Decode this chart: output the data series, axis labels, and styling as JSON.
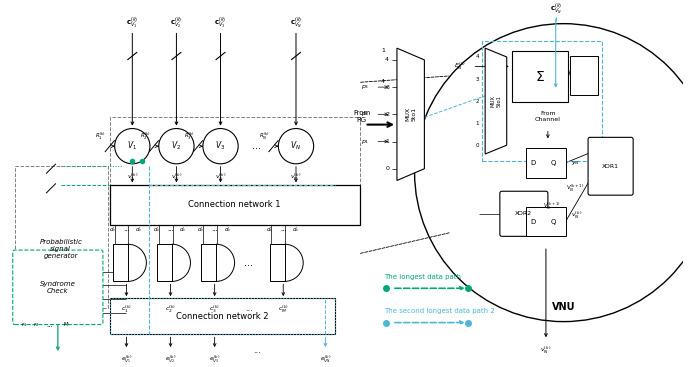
{
  "bg_color": "#ffffff",
  "fig_width": 6.9,
  "fig_height": 3.67,
  "dpi": 100,
  "green": "#00a878",
  "blue": "#4db8d4",
  "gray": "#808080",
  "black": "#000000",
  "legend_longest_label": "The longest data path",
  "legend_second_label": "The second longest data path 2",
  "conn_net1_label": "Connection network 1",
  "conn_net2_label": "Connection network 2",
  "syndrome_check_label": "Syndrome\nCheck",
  "prob_signal_label": "Probabilistic\nsignal\ngenerator",
  "vnu_label": "VNU",
  "from_rg_label": "From\nRG",
  "from_channel_label": "From\nChannel",
  "sum_label": "Σ",
  "xor1_label": "XOR1",
  "xor2_label": "XOR2"
}
